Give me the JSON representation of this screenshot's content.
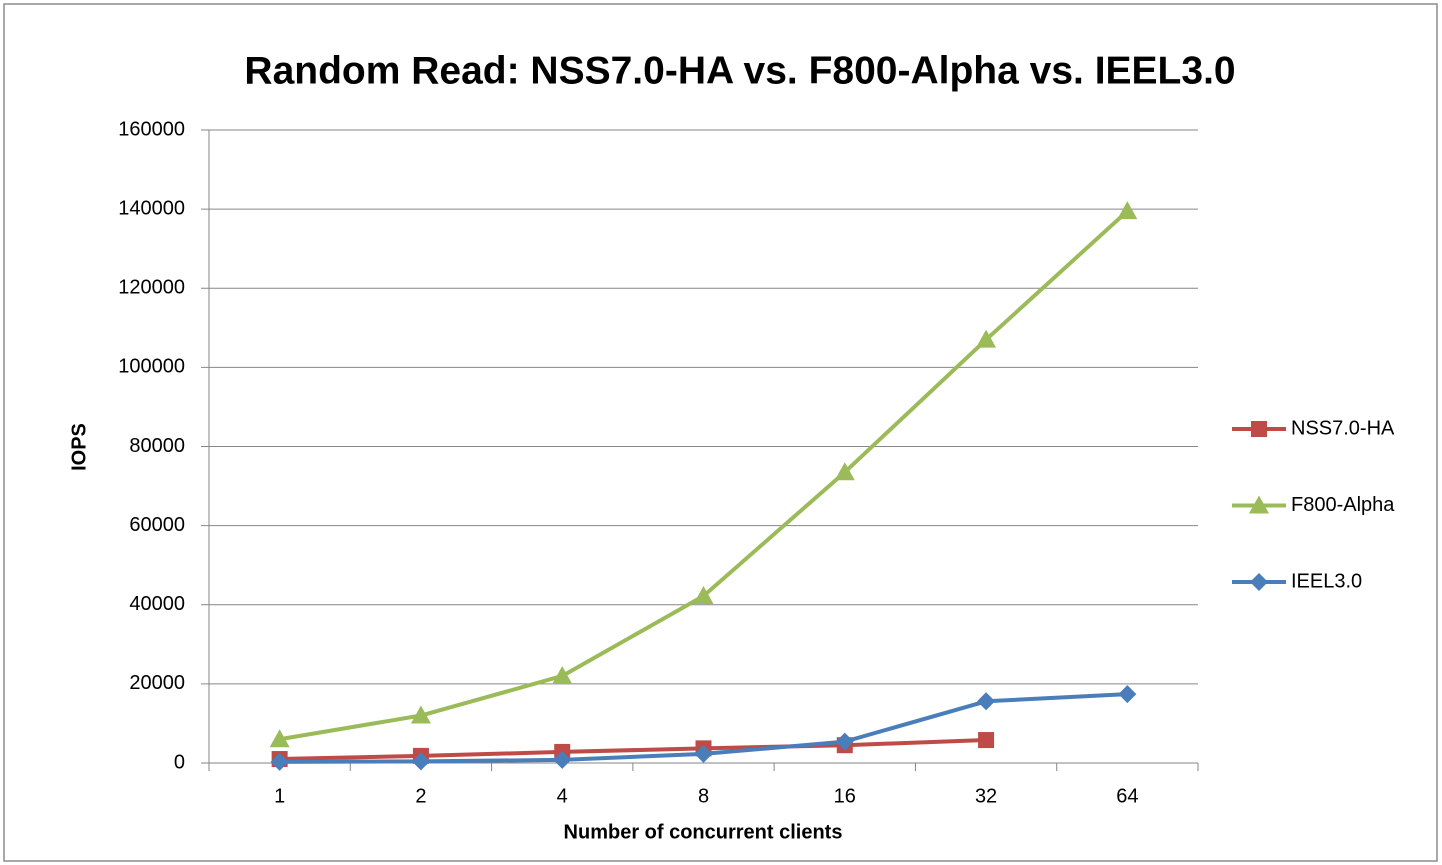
{
  "chart_data": {
    "type": "line",
    "title": "Random Read: NSS7.0-HA vs. F800-Alpha vs. IEEL3.0",
    "x_label": "Number of concurrent clients",
    "y_label": "IOPS",
    "categories": [
      "1",
      "2",
      "4",
      "8",
      "16",
      "32",
      "64"
    ],
    "series": [
      {
        "name": "NSS7.0-HA",
        "color": "#be4b48",
        "marker": "square",
        "values": [
          1000,
          1800,
          2800,
          3700,
          4500,
          5800,
          null
        ]
      },
      {
        "name": "F800-Alpha",
        "color": "#9bbb59",
        "marker": "triangle",
        "values": [
          6000,
          12000,
          22000,
          42200,
          73500,
          107000,
          139500
        ]
      },
      {
        "name": "IEEL3.0",
        "color": "#4a7ebb",
        "marker": "diamond",
        "values": [
          300,
          400,
          800,
          2300,
          5400,
          15600,
          17400
        ]
      }
    ],
    "ylim": [
      0,
      160000
    ],
    "yticks": [
      0,
      20000,
      40000,
      60000,
      80000,
      100000,
      120000,
      140000,
      160000
    ],
    "grid": true,
    "legend": "right"
  }
}
